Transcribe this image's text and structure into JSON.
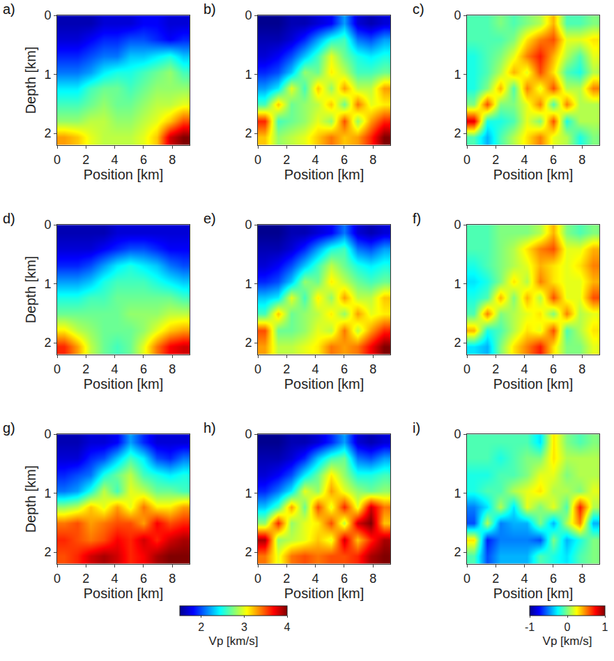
{
  "chart_data": [
    {
      "type": "heatmap",
      "title": "a)",
      "xlabel": "Position [km]",
      "ylabel": "Depth [km]",
      "x": [
        0.46,
        1.38,
        2.3,
        3.22,
        4.14,
        5.06,
        5.98,
        6.9,
        7.82,
        8.74
      ],
      "y": [
        0.14,
        0.41,
        0.69,
        0.96,
        1.24,
        1.51,
        1.79,
        2.06
      ],
      "z": [
        [
          1.6,
          1.6,
          1.6,
          1.7,
          1.7,
          1.7,
          1.8,
          1.8,
          1.7,
          1.7
        ],
        [
          1.7,
          1.7,
          1.8,
          1.9,
          1.9,
          2.0,
          2.0,
          1.9,
          1.8,
          1.9
        ],
        [
          1.9,
          1.9,
          2.0,
          2.1,
          2.1,
          2.3,
          2.3,
          2.4,
          2.5,
          2.3
        ],
        [
          2.1,
          2.1,
          2.2,
          2.4,
          2.5,
          2.5,
          2.6,
          2.7,
          2.8,
          2.6
        ],
        [
          2.4,
          2.4,
          2.6,
          2.7,
          2.7,
          2.6,
          2.7,
          2.8,
          2.8,
          2.8
        ],
        [
          2.6,
          2.6,
          2.7,
          2.8,
          2.7,
          2.7,
          2.8,
          2.9,
          2.9,
          3.0
        ],
        [
          2.8,
          2.8,
          2.9,
          2.9,
          2.8,
          2.8,
          2.9,
          3.0,
          3.2,
          3.5
        ],
        [
          3.3,
          3.2,
          3.0,
          2.9,
          2.9,
          2.9,
          3.0,
          3.2,
          3.8,
          4.0
        ]
      ],
      "xlim": [
        0,
        9.2
      ],
      "ylim": [
        2.2,
        0
      ],
      "xticks": [
        0,
        2,
        4,
        6,
        8
      ],
      "yticks": [
        0,
        1,
        2
      ],
      "zlim": [
        1.5,
        4
      ]
    },
    {
      "type": "heatmap",
      "title": "b)",
      "xlabel": "Position [km]",
      "x": [
        0.46,
        1.38,
        2.3,
        3.22,
        4.14,
        5.06,
        5.98,
        6.9,
        7.82,
        8.74
      ],
      "y": [
        0.14,
        0.41,
        0.69,
        0.96,
        1.24,
        1.51,
        1.79,
        2.06
      ],
      "z": [
        [
          1.5,
          1.5,
          1.6,
          1.6,
          1.7,
          1.8,
          2.2,
          1.7,
          1.6,
          1.7
        ],
        [
          1.6,
          1.6,
          1.7,
          1.9,
          2.2,
          2.5,
          2.6,
          2.1,
          2.0,
          2.2
        ],
        [
          1.7,
          1.8,
          2.0,
          2.3,
          2.6,
          3.0,
          2.7,
          2.5,
          2.4,
          2.5
        ],
        [
          1.9,
          2.0,
          2.3,
          2.8,
          2.7,
          3.1,
          2.9,
          2.6,
          2.6,
          2.7
        ],
        [
          2.2,
          2.4,
          3.0,
          2.6,
          3.2,
          2.8,
          3.3,
          2.9,
          2.9,
          3.3
        ],
        [
          2.6,
          3.2,
          2.7,
          2.8,
          2.9,
          3.2,
          2.7,
          3.4,
          3.0,
          3.1
        ],
        [
          3.6,
          2.6,
          2.7,
          2.8,
          3.0,
          2.8,
          3.5,
          2.8,
          3.3,
          3.6
        ],
        [
          3.2,
          2.8,
          2.9,
          3.0,
          3.2,
          3.4,
          3.2,
          3.3,
          3.6,
          4.0
        ]
      ],
      "xlim": [
        0,
        9.2
      ],
      "ylim": [
        2.2,
        0
      ],
      "xticks": [
        0,
        2,
        4,
        6,
        8
      ],
      "yticks": [
        0,
        1,
        2
      ],
      "zlim": [
        1.5,
        4
      ]
    },
    {
      "type": "heatmap",
      "title": "c)",
      "xlabel": "Position [km]",
      "x": [
        0.46,
        1.38,
        2.3,
        3.22,
        4.14,
        5.06,
        5.98,
        6.9,
        7.82,
        8.74
      ],
      "y": [
        0.14,
        0.41,
        0.69,
        0.96,
        1.24,
        1.51,
        1.79,
        2.06
      ],
      "z": [
        [
          -0.1,
          -0.1,
          0,
          -0.1,
          0,
          0.1,
          0.4,
          -0.1,
          -0.1,
          0
        ],
        [
          -0.1,
          -0.1,
          -0.1,
          0,
          0.3,
          0.5,
          0.6,
          0.2,
          0.2,
          0.3
        ],
        [
          -0.2,
          -0.1,
          0,
          0.2,
          0.5,
          0.7,
          0.4,
          0.1,
          -0.1,
          0.2
        ],
        [
          -0.2,
          -0.1,
          0.1,
          0.4,
          0.2,
          0.6,
          0.3,
          -0.1,
          -0.2,
          0.1
        ],
        [
          -0.2,
          0,
          0.4,
          -0.1,
          0.5,
          0.2,
          0.6,
          0.1,
          0.1,
          0.5
        ],
        [
          0,
          0.6,
          0,
          0,
          0.2,
          0.5,
          -0.1,
          0.5,
          0.1,
          0.1
        ],
        [
          0.8,
          -0.2,
          -0.2,
          -0.1,
          0.2,
          0,
          0.6,
          -0.2,
          0.1,
          0.1
        ],
        [
          -0.1,
          -0.4,
          -0.1,
          0.1,
          0.3,
          0.5,
          0.2,
          0.1,
          -0.2,
          0
        ]
      ],
      "xlim": [
        0,
        9.2
      ],
      "ylim": [
        2.2,
        0
      ],
      "xticks": [
        0,
        2,
        4,
        6,
        8
      ],
      "yticks": [
        0,
        1,
        2
      ],
      "zlim": [
        -1,
        1
      ]
    },
    {
      "type": "heatmap",
      "title": "d)",
      "xlabel": "Position [km]",
      "ylabel": "Depth [km]",
      "x": [
        0.46,
        1.38,
        2.3,
        3.22,
        4.14,
        5.06,
        5.98,
        6.9,
        7.82,
        8.74
      ],
      "y": [
        0.14,
        0.41,
        0.69,
        0.96,
        1.24,
        1.51,
        1.79,
        2.06
      ],
      "z": [
        [
          1.6,
          1.6,
          1.6,
          1.6,
          1.7,
          1.7,
          1.7,
          1.7,
          1.7,
          1.7
        ],
        [
          1.7,
          1.7,
          1.7,
          1.8,
          1.9,
          2.0,
          2.0,
          1.9,
          1.8,
          1.8
        ],
        [
          1.9,
          1.9,
          2.0,
          2.2,
          2.4,
          2.5,
          2.4,
          2.3,
          2.1,
          2.0
        ],
        [
          2.2,
          2.2,
          2.3,
          2.5,
          2.6,
          2.6,
          2.6,
          2.5,
          2.4,
          2.3
        ],
        [
          2.5,
          2.5,
          2.6,
          2.6,
          2.7,
          2.7,
          2.7,
          2.7,
          2.7,
          2.6
        ],
        [
          2.7,
          2.7,
          2.7,
          2.7,
          2.7,
          2.8,
          2.8,
          2.8,
          2.9,
          2.9
        ],
        [
          3.1,
          2.9,
          2.8,
          2.7,
          2.7,
          2.7,
          2.8,
          3.0,
          3.2,
          3.3
        ],
        [
          3.6,
          3.3,
          2.9,
          2.7,
          2.6,
          2.7,
          3.0,
          3.4,
          3.7,
          3.8
        ]
      ],
      "xlim": [
        0,
        9.2
      ],
      "ylim": [
        2.2,
        0
      ],
      "xticks": [
        0,
        2,
        4,
        6,
        8
      ],
      "yticks": [
        0,
        1,
        2
      ],
      "zlim": [
        1.5,
        4
      ]
    },
    {
      "type": "heatmap",
      "title": "e)",
      "xlabel": "Position [km]",
      "x": [
        0.46,
        1.38,
        2.3,
        3.22,
        4.14,
        5.06,
        5.98,
        6.9,
        7.82,
        8.74
      ],
      "y": [
        0.14,
        0.41,
        0.69,
        0.96,
        1.24,
        1.51,
        1.79,
        2.06
      ],
      "z": [
        [
          1.5,
          1.5,
          1.6,
          1.6,
          1.7,
          1.8,
          2.1,
          1.7,
          1.6,
          1.7
        ],
        [
          1.6,
          1.6,
          1.7,
          1.9,
          2.2,
          2.5,
          2.6,
          2.1,
          2.0,
          2.2
        ],
        [
          1.7,
          1.8,
          2.0,
          2.3,
          2.6,
          2.9,
          2.7,
          2.5,
          2.4,
          2.5
        ],
        [
          1.9,
          2.0,
          2.3,
          2.8,
          2.7,
          3.1,
          2.9,
          2.7,
          2.6,
          2.7
        ],
        [
          2.3,
          2.4,
          3.0,
          2.6,
          3.1,
          2.8,
          3.3,
          2.9,
          2.9,
          3.2
        ],
        [
          2.6,
          3.2,
          2.7,
          2.8,
          2.9,
          3.1,
          2.8,
          3.3,
          3.0,
          3.1
        ],
        [
          3.5,
          2.7,
          2.7,
          2.8,
          3.0,
          2.9,
          3.4,
          2.9,
          3.3,
          3.6
        ],
        [
          3.3,
          2.9,
          2.9,
          3.0,
          3.1,
          3.4,
          3.3,
          3.4,
          3.7,
          4.0
        ]
      ],
      "xlim": [
        0,
        9.2
      ],
      "ylim": [
        2.2,
        0
      ],
      "xticks": [
        0,
        2,
        4,
        6,
        8
      ],
      "yticks": [
        0,
        1,
        2
      ],
      "zlim": [
        1.5,
        4
      ]
    },
    {
      "type": "heatmap",
      "title": "f)",
      "xlabel": "Position [km]",
      "x": [
        0.46,
        1.38,
        2.3,
        3.22,
        4.14,
        5.06,
        5.98,
        6.9,
        7.82,
        8.74
      ],
      "y": [
        0.14,
        0.41,
        0.69,
        0.96,
        1.24,
        1.51,
        1.79,
        2.06
      ],
      "z": [
        [
          -0.1,
          -0.1,
          0,
          0,
          0,
          0.1,
          0.4,
          0,
          -0.1,
          0
        ],
        [
          -0.1,
          -0.1,
          0,
          0.1,
          0.3,
          0.5,
          0.6,
          0.2,
          0.2,
          0.4
        ],
        [
          -0.2,
          -0.1,
          0,
          0.1,
          0.2,
          0.4,
          0.3,
          0.2,
          0.3,
          0.5
        ],
        [
          -0.3,
          -0.2,
          0,
          0.3,
          0.1,
          0.5,
          0.3,
          0.2,
          0.2,
          0.4
        ],
        [
          -0.2,
          -0.1,
          0.4,
          0,
          0.4,
          0.1,
          0.6,
          0.2,
          0.2,
          0.6
        ],
        [
          -0.1,
          0.5,
          0,
          0.1,
          0.2,
          0.3,
          0,
          0.5,
          0.1,
          0.2
        ],
        [
          0.4,
          -0.2,
          -0.1,
          0.1,
          0.3,
          0.2,
          0.6,
          -0.1,
          0.1,
          0.3
        ],
        [
          -0.3,
          -0.4,
          0,
          0.3,
          0.5,
          0.7,
          0.3,
          0,
          0,
          0.2
        ]
      ],
      "xlim": [
        0,
        9.2
      ],
      "ylim": [
        2.2,
        0
      ],
      "xticks": [
        0,
        2,
        4,
        6,
        8
      ],
      "yticks": [
        0,
        1,
        2
      ],
      "zlim": [
        -1,
        1
      ]
    },
    {
      "type": "heatmap",
      "title": "g)",
      "xlabel": "Position [km]",
      "ylabel": "Depth [km]",
      "x": [
        0.46,
        1.38,
        2.3,
        3.22,
        4.14,
        5.06,
        5.98,
        6.9,
        7.82,
        8.74
      ],
      "y": [
        0.14,
        0.41,
        0.69,
        0.96,
        1.24,
        1.51,
        1.79,
        2.06
      ],
      "z": [
        [
          1.6,
          1.6,
          1.7,
          1.7,
          1.8,
          2.2,
          1.9,
          1.7,
          1.7,
          1.7
        ],
        [
          1.7,
          1.7,
          1.9,
          2.0,
          2.3,
          2.6,
          2.4,
          2.0,
          1.9,
          2.1
        ],
        [
          1.9,
          2.0,
          2.1,
          2.5,
          2.7,
          2.9,
          2.6,
          2.5,
          2.4,
          2.5
        ],
        [
          2.1,
          2.2,
          2.5,
          2.9,
          2.6,
          3.0,
          2.9,
          2.7,
          2.7,
          2.6
        ],
        [
          2.8,
          2.9,
          3.2,
          3.0,
          3.3,
          3.0,
          3.4,
          3.1,
          3.1,
          3.3
        ],
        [
          3.4,
          3.5,
          3.3,
          3.4,
          3.5,
          3.5,
          3.3,
          3.7,
          3.5,
          3.6
        ],
        [
          3.6,
          3.5,
          3.4,
          3.5,
          3.7,
          3.6,
          3.8,
          3.6,
          3.8,
          3.9
        ],
        [
          3.5,
          3.6,
          3.8,
          3.9,
          3.8,
          3.6,
          3.7,
          3.9,
          4.0,
          4.0
        ]
      ],
      "xlim": [
        0,
        9.2
      ],
      "ylim": [
        2.2,
        0
      ],
      "xticks": [
        0,
        2,
        4,
        6,
        8
      ],
      "yticks": [
        0,
        1,
        2
      ],
      "zlim": [
        1.5,
        4
      ]
    },
    {
      "type": "heatmap",
      "title": "h)",
      "xlabel": "Position [km]",
      "x": [
        0.46,
        1.38,
        2.3,
        3.22,
        4.14,
        5.06,
        5.98,
        6.9,
        7.82,
        8.74
      ],
      "y": [
        0.14,
        0.41,
        0.69,
        0.96,
        1.24,
        1.51,
        1.79,
        2.06
      ],
      "z": [
        [
          1.5,
          1.5,
          1.6,
          1.6,
          1.7,
          1.9,
          2.2,
          1.7,
          1.6,
          1.7
        ],
        [
          1.6,
          1.6,
          1.7,
          1.9,
          2.3,
          2.6,
          2.7,
          2.1,
          2.0,
          2.2
        ],
        [
          1.7,
          1.8,
          2.0,
          2.4,
          2.7,
          3.1,
          2.8,
          2.5,
          2.5,
          2.6
        ],
        [
          1.9,
          2.1,
          2.4,
          3.0,
          2.8,
          3.3,
          3.0,
          2.8,
          2.7,
          2.8
        ],
        [
          2.3,
          2.6,
          3.3,
          2.7,
          3.5,
          3.0,
          3.6,
          3.0,
          3.8,
          3.4
        ],
        [
          2.8,
          3.6,
          2.8,
          3.0,
          3.1,
          3.5,
          2.9,
          3.8,
          4.0,
          3.2
        ],
        [
          3.9,
          2.8,
          2.9,
          3.0,
          3.2,
          3.0,
          3.8,
          3.2,
          3.6,
          3.9
        ],
        [
          3.4,
          3.0,
          3.4,
          3.5,
          3.4,
          3.5,
          3.5,
          3.6,
          3.9,
          4.0
        ]
      ],
      "xlim": [
        0,
        9.2
      ],
      "ylim": [
        2.2,
        0
      ],
      "xticks": [
        0,
        2,
        4,
        6,
        8
      ],
      "yticks": [
        0,
        1,
        2
      ],
      "zlim": [
        1.5,
        4
      ],
      "colorbar": {
        "title": "Vp [km/s]",
        "ticks": [
          2,
          3,
          4
        ]
      }
    },
    {
      "type": "heatmap",
      "title": "i)",
      "xlabel": "Position [km]",
      "x": [
        0.46,
        1.38,
        2.3,
        3.22,
        4.14,
        5.06,
        5.98,
        6.9,
        7.82,
        8.74
      ],
      "y": [
        0.14,
        0.41,
        0.69,
        0.96,
        1.24,
        1.51,
        1.79,
        2.06
      ],
      "z": [
        [
          -0.1,
          -0.1,
          -0.1,
          -0.1,
          -0.1,
          -0.3,
          0.3,
          0,
          -0.1,
          0
        ],
        [
          -0.1,
          -0.1,
          -0.2,
          -0.1,
          0,
          0,
          0.3,
          0.1,
          0.1,
          0.1
        ],
        [
          -0.2,
          -0.2,
          -0.1,
          -0.1,
          0,
          0.2,
          0.2,
          0,
          0.1,
          0.1
        ],
        [
          -0.2,
          -0.1,
          -0.1,
          0.1,
          0.2,
          0.3,
          0.1,
          0.1,
          0,
          0.2
        ],
        [
          -0.5,
          -0.3,
          0.1,
          -0.3,
          0.2,
          0,
          0.2,
          -0.1,
          0.7,
          0.1
        ],
        [
          -0.6,
          0.1,
          -0.5,
          -0.4,
          -0.4,
          0,
          -0.4,
          0.1,
          0.5,
          -0.4
        ],
        [
          0.3,
          -0.7,
          -0.5,
          -0.5,
          -0.5,
          -0.6,
          0,
          -0.4,
          -0.2,
          0
        ],
        [
          -0.1,
          -0.6,
          -0.4,
          -0.4,
          -0.4,
          -0.1,
          -0.2,
          -0.3,
          -0.1,
          0
        ]
      ],
      "xlim": [
        0,
        9.2
      ],
      "ylim": [
        2.2,
        0
      ],
      "xticks": [
        0,
        2,
        4,
        6,
        8
      ],
      "yticks": [
        0,
        1,
        2
      ],
      "zlim": [
        -1,
        1
      ],
      "colorbar": {
        "title": "Vp [km/s]",
        "ticks": [
          -1,
          0,
          1
        ]
      }
    }
  ]
}
